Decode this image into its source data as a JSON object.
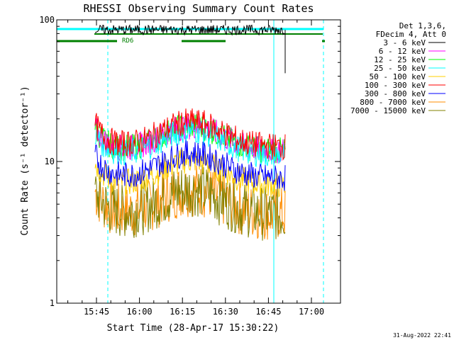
{
  "chart_data": {
    "type": "line",
    "title": "RHESSI Observing Summary Count Rates",
    "xlabel": "Start Time (28-Apr-17 15:30:22)",
    "ylabel": "Count Rate (s⁻¹ detector⁻¹)",
    "y_scale": "log",
    "ylim": [
      1,
      100
    ],
    "xlim_minutes_from_1530": [
      -1,
      77
    ],
    "x_ticks": [
      {
        "label": "15:45",
        "minute": 15
      },
      {
        "label": "16:00",
        "minute": 30
      },
      {
        "label": "16:15",
        "minute": 45
      },
      {
        "label": "16:30",
        "minute": 60
      },
      {
        "label": "16:45",
        "minute": 75
      },
      {
        "label": "17:00",
        "minute": 90
      }
    ],
    "y_ticks": [
      "1",
      "10",
      "100"
    ],
    "legend_header": [
      "Det 1,3,6,",
      "FDecim 4, Att 0"
    ],
    "legend_position": "right",
    "series": [
      {
        "name": "3 - 6 keV",
        "color": "#000000",
        "level": 85
      },
      {
        "name": "6 - 12 keV",
        "color": "#ff00ff",
        "level": 14
      },
      {
        "name": "12 - 25 keV",
        "color": "#00ff00",
        "level": 14
      },
      {
        "name": "25 - 50 keV",
        "color": "#00ffff",
        "level": 13
      },
      {
        "name": "50 - 100 keV",
        "color": "#ffd000",
        "level": 8
      },
      {
        "name": "100 - 300 keV",
        "color": "#ff0000",
        "level": 15
      },
      {
        "name": "300 - 800 keV",
        "color": "#0000ff",
        "level": 9
      },
      {
        "name": "800 - 7000 keV",
        "color": "#ff8c00",
        "level": 5
      },
      {
        "name": "7000 - 15000 keV",
        "color": "#808000",
        "level": 5
      }
    ],
    "annotations": [
      "RD6"
    ],
    "footer_timestamp": "31-Aug-2022 22:41"
  }
}
